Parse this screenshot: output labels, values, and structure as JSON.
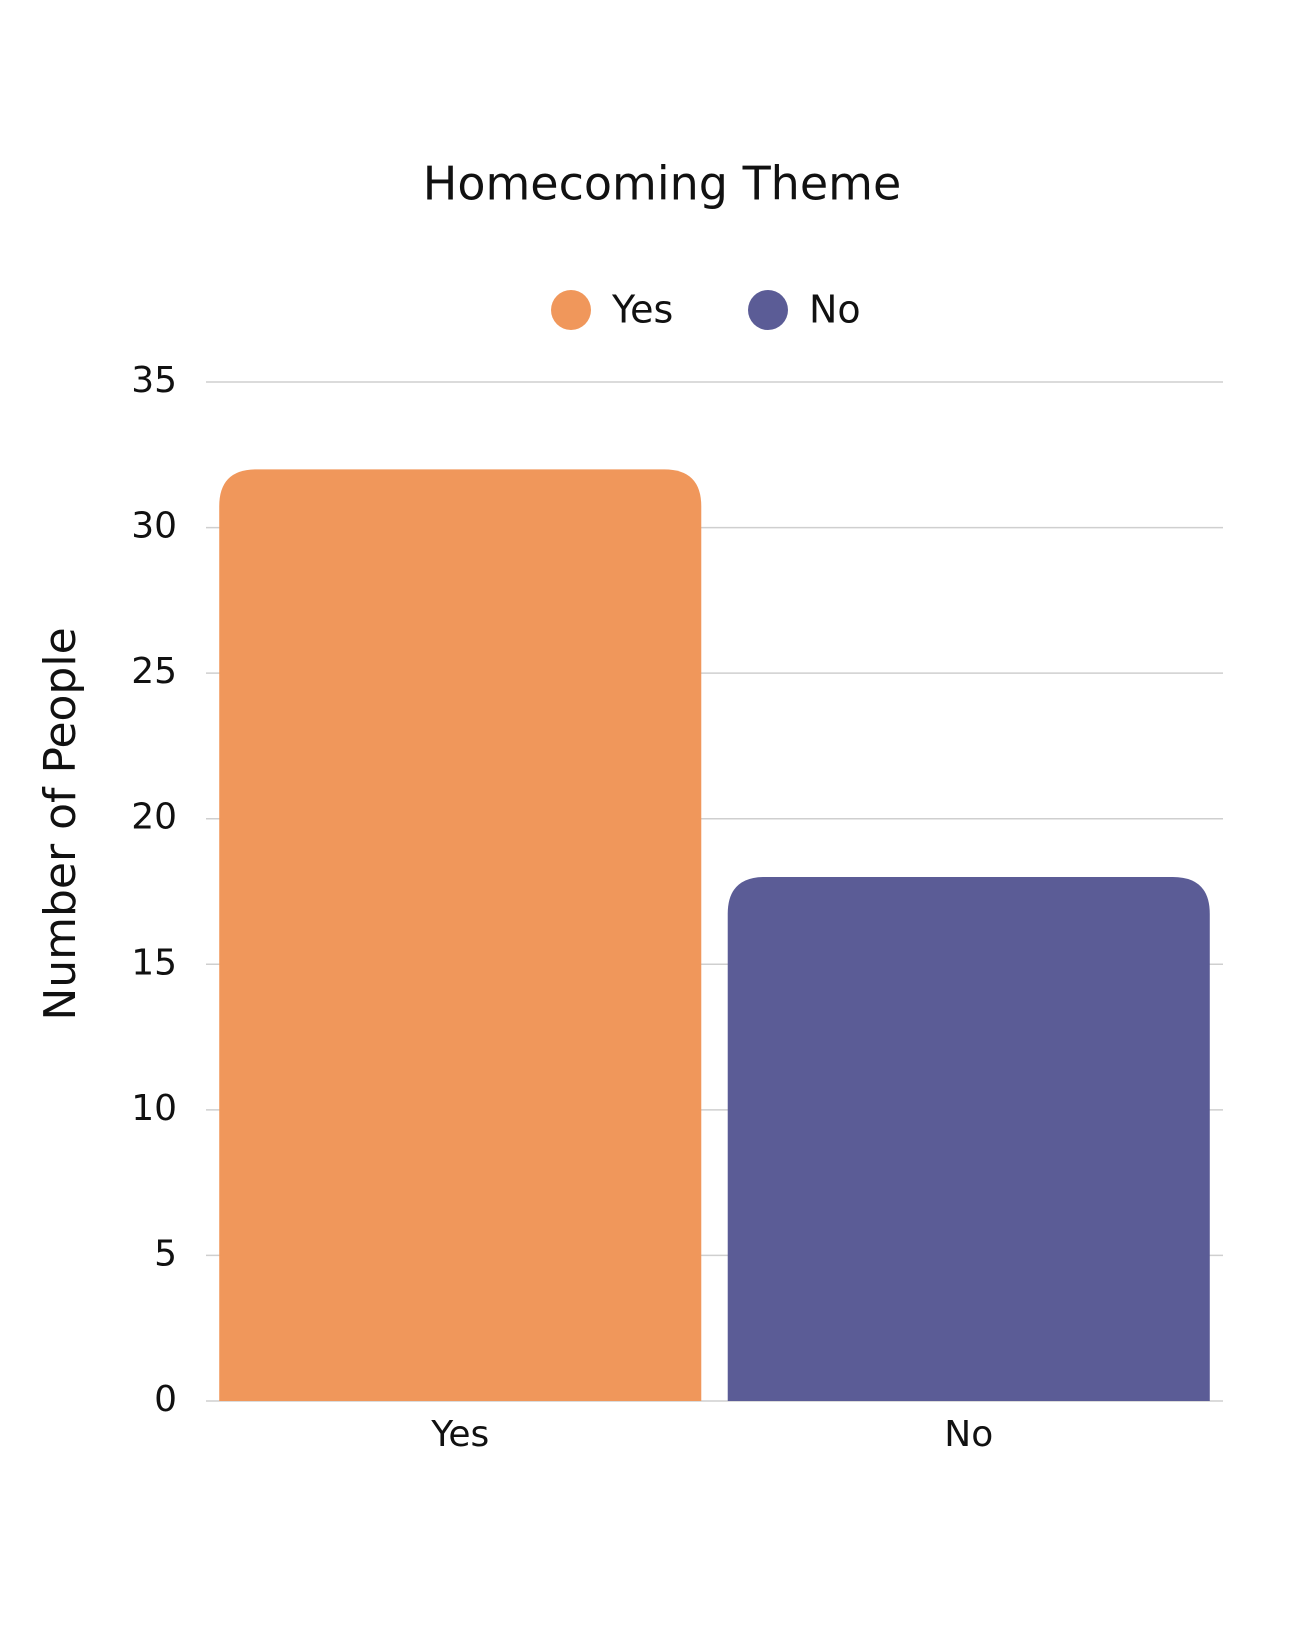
{
  "chart_data": {
    "type": "bar",
    "title": "Homecoming Theme",
    "y_label": "Number of People",
    "categories": [
      "Yes",
      "No"
    ],
    "values": [
      32,
      18
    ],
    "colors": [
      "#f0975b",
      "#5b5c96"
    ],
    "ylim": [
      0,
      35
    ],
    "yticks": [
      0,
      5,
      10,
      15,
      20,
      25,
      30,
      35
    ],
    "grid": true,
    "legend": "top"
  }
}
